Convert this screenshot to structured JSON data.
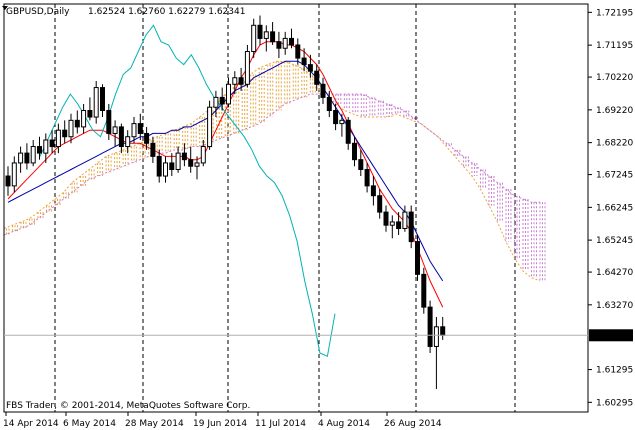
{
  "chart_data": {
    "type": "candlestick",
    "symbol_label": "GBPUSD,Daily",
    "ohlc_label": "1.62524 1.62760 1.62279 1.62341",
    "copyright": "FBS Trader, © 2001-2014, MetaQuotes Software Corp.",
    "current_price": "1.62341",
    "ylim": [
      1.6,
      1.7245
    ],
    "y_ticks": [
      "1.72195",
      "1.71195",
      "1.70220",
      "1.69220",
      "1.68220",
      "1.67245",
      "1.66245",
      "1.65245",
      "1.64270",
      "1.63270",
      "1.62341",
      "1.61295",
      "1.60295"
    ],
    "x_ticks": [
      "14 Apr 2014",
      "6 May 2014",
      "28 May 2014",
      "19 Jun 2014",
      "11 Jul 2014",
      "4 Aug 2014",
      "26 Aug 2014"
    ],
    "period_separator_dates": [
      "1 May 2014",
      "2 Jun 2014",
      "1 Jul 2014",
      "1 Aug 2014",
      "1 Sep 2014",
      "1 Oct 2014"
    ],
    "candles": [
      [
        1.672,
        1.675,
        1.666,
        1.669
      ],
      [
        1.669,
        1.678,
        1.667,
        1.676
      ],
      [
        1.676,
        1.681,
        1.673,
        1.679
      ],
      [
        1.679,
        1.682,
        1.674,
        1.676
      ],
      [
        1.676,
        1.683,
        1.675,
        1.681
      ],
      [
        1.681,
        1.684,
        1.677,
        1.679
      ],
      [
        1.679,
        1.685,
        1.676,
        1.683
      ],
      [
        1.683,
        1.686,
        1.679,
        1.681
      ],
      [
        1.681,
        1.688,
        1.679,
        1.686
      ],
      [
        1.686,
        1.689,
        1.682,
        1.684
      ],
      [
        1.684,
        1.691,
        1.682,
        1.689
      ],
      [
        1.689,
        1.692,
        1.685,
        1.687
      ],
      [
        1.687,
        1.694,
        1.685,
        1.692
      ],
      [
        1.692,
        1.696,
        1.689,
        1.69
      ],
      [
        1.69,
        1.701,
        1.688,
        1.699
      ],
      [
        1.699,
        1.7,
        1.69,
        1.692
      ],
      [
        1.692,
        1.694,
        1.683,
        1.685
      ],
      [
        1.685,
        1.689,
        1.681,
        1.687
      ],
      [
        1.687,
        1.688,
        1.679,
        1.681
      ],
      [
        1.681,
        1.686,
        1.679,
        1.684
      ],
      [
        1.684,
        1.69,
        1.682,
        1.688
      ],
      [
        1.688,
        1.691,
        1.683,
        1.685
      ],
      [
        1.685,
        1.687,
        1.68,
        1.682
      ],
      [
        1.682,
        1.684,
        1.676,
        1.678
      ],
      [
        1.678,
        1.68,
        1.67,
        1.672
      ],
      [
        1.672,
        1.678,
        1.67,
        1.676
      ],
      [
        1.676,
        1.679,
        1.672,
        1.674
      ],
      [
        1.674,
        1.681,
        1.673,
        1.679
      ],
      [
        1.679,
        1.682,
        1.675,
        1.677
      ],
      [
        1.677,
        1.681,
        1.673,
        1.675
      ],
      [
        1.675,
        1.678,
        1.671,
        1.676
      ],
      [
        1.676,
        1.683,
        1.675,
        1.681
      ],
      [
        1.681,
        1.695,
        1.68,
        1.693
      ],
      [
        1.693,
        1.698,
        1.69,
        1.696
      ],
      [
        1.696,
        1.699,
        1.692,
        1.694
      ],
      [
        1.694,
        1.702,
        1.693,
        1.7
      ],
      [
        1.7,
        1.704,
        1.697,
        1.702
      ],
      [
        1.702,
        1.705,
        1.698,
        1.7
      ],
      [
        1.7,
        1.712,
        1.699,
        1.71
      ],
      [
        1.71,
        1.72,
        1.708,
        1.718
      ],
      [
        1.718,
        1.721,
        1.712,
        1.714
      ],
      [
        1.714,
        1.718,
        1.71,
        1.716
      ],
      [
        1.716,
        1.719,
        1.712,
        1.713
      ],
      [
        1.713,
        1.716,
        1.708,
        1.711
      ],
      [
        1.711,
        1.716,
        1.709,
        1.714
      ],
      [
        1.714,
        1.717,
        1.711,
        1.712
      ],
      [
        1.712,
        1.714,
        1.706,
        1.708
      ],
      [
        1.708,
        1.711,
        1.704,
        1.706
      ],
      [
        1.706,
        1.709,
        1.702,
        1.704
      ],
      [
        1.704,
        1.706,
        1.698,
        1.7
      ],
      [
        1.7,
        1.702,
        1.694,
        1.696
      ],
      [
        1.696,
        1.698,
        1.69,
        1.692
      ],
      [
        1.692,
        1.694,
        1.686,
        1.688
      ],
      [
        1.688,
        1.691,
        1.684,
        1.689
      ],
      [
        1.689,
        1.69,
        1.68,
        1.682
      ],
      [
        1.682,
        1.684,
        1.675,
        1.677
      ],
      [
        1.677,
        1.68,
        1.672,
        1.674
      ],
      [
        1.674,
        1.676,
        1.667,
        1.669
      ],
      [
        1.669,
        1.672,
        1.663,
        1.666
      ],
      [
        1.666,
        1.668,
        1.659,
        1.661
      ],
      [
        1.661,
        1.663,
        1.655,
        1.657
      ],
      [
        1.657,
        1.66,
        1.653,
        1.658
      ],
      [
        1.658,
        1.661,
        1.654,
        1.656
      ],
      [
        1.656,
        1.663,
        1.655,
        1.661
      ],
      [
        1.661,
        1.663,
        1.65,
        1.652
      ],
      [
        1.652,
        1.654,
        1.64,
        1.642
      ],
      [
        1.642,
        1.644,
        1.63,
        1.632
      ],
      [
        1.632,
        1.634,
        1.618,
        1.62
      ],
      [
        1.62,
        1.629,
        1.607,
        1.626
      ],
      [
        1.626,
        1.629,
        1.622,
        1.6234
      ]
    ],
    "series": [
      {
        "color": "#ff0000",
        "values": [
          1.665,
          1.667,
          1.669,
          1.671,
          1.673,
          1.675,
          1.677,
          1.679,
          1.681,
          1.682,
          1.683,
          1.684,
          1.685,
          1.686,
          1.686,
          1.686,
          1.685,
          1.684,
          1.683,
          1.682,
          1.682,
          1.682,
          1.681,
          1.68,
          1.679,
          1.678,
          1.678,
          1.678,
          1.678,
          1.677,
          1.677,
          1.678,
          1.682,
          1.686,
          1.69,
          1.694,
          1.698,
          1.702,
          1.705,
          1.709,
          1.712,
          1.713,
          1.713,
          1.713,
          1.712,
          1.712,
          1.711,
          1.71,
          1.708,
          1.706,
          1.703,
          1.699,
          1.695,
          1.692,
          1.688,
          1.684,
          1.68,
          1.676,
          1.672,
          1.668,
          1.665,
          1.662,
          1.66,
          1.658,
          1.655,
          1.65,
          1.645,
          1.64,
          1.636,
          1.632
        ]
      },
      {
        "color": "#0000aa",
        "values": [
          1.664,
          1.665,
          1.666,
          1.667,
          1.668,
          1.669,
          1.67,
          1.671,
          1.672,
          1.673,
          1.674,
          1.675,
          1.676,
          1.677,
          1.678,
          1.679,
          1.68,
          1.681,
          1.682,
          1.682,
          1.683,
          1.684,
          1.684,
          1.685,
          1.685,
          1.685,
          1.686,
          1.686,
          1.687,
          1.687,
          1.688,
          1.689,
          1.69,
          1.692,
          1.694,
          1.696,
          1.698,
          1.699,
          1.7,
          1.702,
          1.703,
          1.704,
          1.705,
          1.706,
          1.707,
          1.707,
          1.707,
          1.706,
          1.704,
          1.702,
          1.699,
          1.696,
          1.693,
          1.69,
          1.687,
          1.684,
          1.681,
          1.678,
          1.675,
          1.672,
          1.669,
          1.666,
          1.663,
          1.661,
          1.658,
          1.654,
          1.65,
          1.646,
          1.643,
          1.64
        ]
      },
      {
        "color": "#00b3b3",
        "values": [
          1.678,
          1.683,
          1.688,
          1.693,
          1.697,
          1.694,
          1.69,
          1.686,
          1.684,
          1.69,
          1.697,
          1.703,
          1.705,
          1.71,
          1.715,
          1.718,
          1.713,
          1.712,
          1.708,
          1.706,
          1.709,
          1.705,
          1.7,
          1.696,
          1.693,
          1.69,
          1.687,
          1.684,
          1.68,
          1.675,
          1.672,
          1.67,
          1.666,
          1.66,
          1.652,
          1.64,
          1.63,
          1.618,
          1.617,
          1.63
        ]
      },
      {
        "color": "#e8a33c",
        "values": [
          1.656,
          1.657,
          1.658,
          1.659,
          1.661,
          1.663,
          1.665,
          1.667,
          1.67,
          1.672,
          1.674,
          1.676,
          1.678,
          1.679,
          1.68,
          1.681,
          1.682,
          1.683,
          1.684,
          1.685,
          1.686,
          1.687,
          1.688,
          1.69,
          1.692,
          1.694,
          1.697,
          1.699,
          1.701,
          1.703,
          1.705,
          1.706,
          1.707,
          1.707,
          1.706,
          1.705,
          1.703,
          1.7,
          1.697,
          1.694,
          1.692,
          1.691,
          1.69,
          1.69,
          1.69,
          1.69,
          1.691,
          1.69,
          1.689,
          1.688,
          1.686,
          1.684,
          1.681,
          1.678,
          1.675,
          1.672,
          1.668,
          1.663,
          1.658,
          1.652,
          1.647,
          1.643,
          1.641,
          1.64
        ]
      },
      {
        "color": "#c77dd0",
        "values": [
          1.654,
          1.655,
          1.656,
          1.657,
          1.659,
          1.661,
          1.663,
          1.665,
          1.667,
          1.669,
          1.671,
          1.672,
          1.673,
          1.674,
          1.675,
          1.676,
          1.677,
          1.678,
          1.679,
          1.679,
          1.68,
          1.68,
          1.681,
          1.681,
          1.682,
          1.683,
          1.684,
          1.685,
          1.686,
          1.687,
          1.688,
          1.69,
          1.692,
          1.694,
          1.695,
          1.696,
          1.697,
          1.697,
          1.697,
          1.697,
          1.697,
          1.697,
          1.697,
          1.696,
          1.695,
          1.694,
          1.693,
          1.692,
          1.69,
          1.688,
          1.686,
          1.684,
          1.682,
          1.68,
          1.678,
          1.676,
          1.674,
          1.672,
          1.67,
          1.668,
          1.666,
          1.665,
          1.664,
          1.664
        ]
      }
    ]
  }
}
